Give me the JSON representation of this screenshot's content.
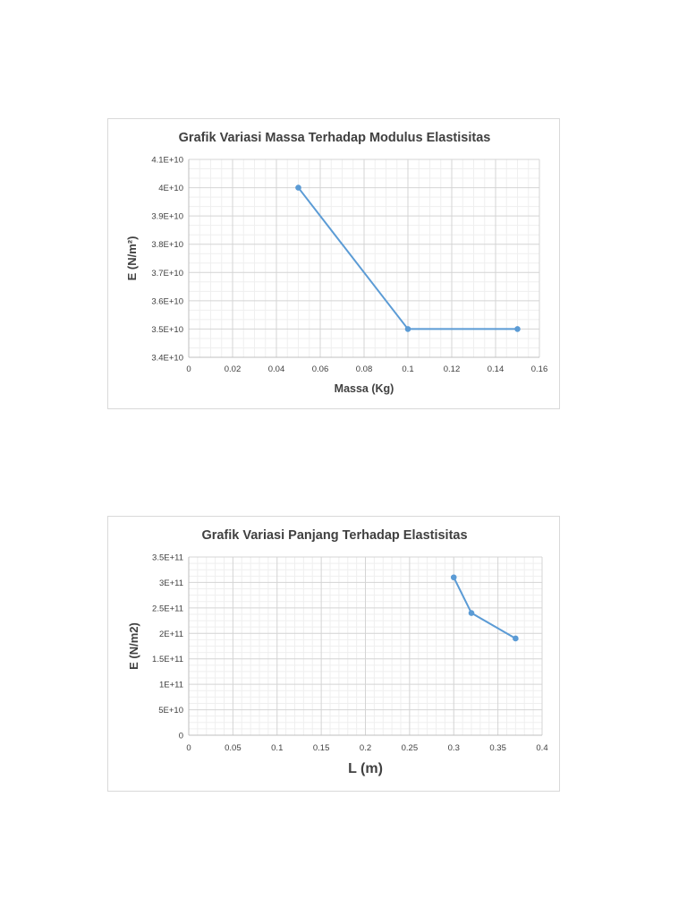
{
  "chart_data": [
    {
      "type": "line",
      "title": "Grafik Variasi Massa Terhadap Modulus Elastisitas",
      "xlabel": "Massa (Kg)",
      "ylabel": "E (N/m²)",
      "x": [
        0.05,
        0.1,
        0.15
      ],
      "series": [
        {
          "values": [
            40000000000.0,
            35000000000.0,
            35000000000.0
          ]
        }
      ],
      "xlim": [
        0,
        0.16
      ],
      "ylim": [
        34000000000.0,
        41000000000.0
      ],
      "x_ticks": [
        "0",
        "0.02",
        "0.04",
        "0.06",
        "0.08",
        "0.1",
        "0.12",
        "0.14",
        "0.16"
      ],
      "y_ticks": [
        "3.4E+10",
        "3.5E+10",
        "3.6E+10",
        "3.7E+10",
        "3.8E+10",
        "3.9E+10",
        "4E+10",
        "4.1E+10"
      ],
      "grid": true,
      "minor_grid": true,
      "line_color": "#5b9bd5"
    },
    {
      "type": "line",
      "title": "Grafik Variasi Panjang Terhadap Elastisitas",
      "xlabel": "L (m)",
      "ylabel": "E (N/m2)",
      "x": [
        0.3,
        0.32,
        0.37
      ],
      "series": [
        {
          "values": [
            310000000000.0,
            240000000000.0,
            190000000000.0
          ]
        }
      ],
      "xlim": [
        0,
        0.4
      ],
      "ylim": [
        0,
        350000000000.0
      ],
      "x_ticks": [
        "0",
        "0.05",
        "0.1",
        "0.15",
        "0.2",
        "0.25",
        "0.3",
        "0.35",
        "0.4"
      ],
      "y_ticks": [
        "0",
        "5E+10",
        "1E+11",
        "1.5E+11",
        "2E+11",
        "2.5E+11",
        "3E+11",
        "3.5E+11"
      ],
      "grid": true,
      "minor_grid": true,
      "line_color": "#5b9bd5"
    }
  ]
}
